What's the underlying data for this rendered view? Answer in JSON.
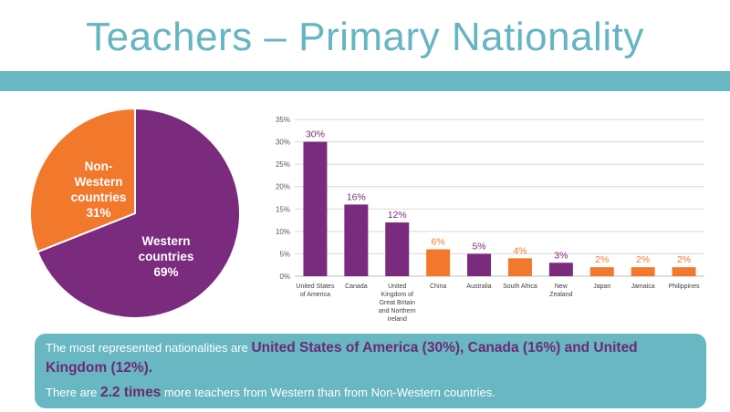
{
  "title": "Teachers – Primary Nationality",
  "colors": {
    "western": "#7b2b7e",
    "nonwestern": "#f2782c",
    "accent": "#68b7c3"
  },
  "pie": {
    "western": {
      "name": "Western countries",
      "value": 69,
      "label_line1": "Western",
      "label_line2": "countries",
      "pct": "69%"
    },
    "nonwestern": {
      "name": "Non-Western countries",
      "value": 31,
      "label_line1": "Non-",
      "label_line2": "Western",
      "label_line3": "countries",
      "pct": "31%"
    }
  },
  "chart_data": [
    {
      "type": "pie",
      "categories": [
        "Western countries",
        "Non-Western countries"
      ],
      "values": [
        69,
        31
      ],
      "colors": [
        "#7b2b7e",
        "#f2782c"
      ]
    },
    {
      "type": "bar",
      "categories": [
        [
          "United States",
          "of America"
        ],
        [
          "Canada"
        ],
        [
          "United",
          "Kingdom of",
          "Great Britain",
          "and Northern",
          "Ireland"
        ],
        [
          "China"
        ],
        [
          "Australia"
        ],
        [
          "South Africa"
        ],
        [
          "New",
          "Zealand"
        ],
        [
          "Japan"
        ],
        [
          "Jamaica"
        ],
        [
          "Philippines"
        ]
      ],
      "values": [
        30,
        16,
        12,
        6,
        5,
        4,
        3,
        2,
        2,
        2
      ],
      "data_labels": [
        "30%",
        "16%",
        "12%",
        "6%",
        "5%",
        "4%",
        "3%",
        "2%",
        "2%",
        "2%"
      ],
      "group": [
        "western",
        "western",
        "western",
        "nonwestern",
        "western",
        "nonwestern",
        "western",
        "nonwestern",
        "nonwestern",
        "nonwestern"
      ],
      "ylim": [
        0,
        35
      ],
      "yticks": [
        0,
        5,
        10,
        15,
        20,
        25,
        30,
        35
      ],
      "ytick_labels": [
        "0%",
        "5%",
        "10%",
        "15%",
        "20%",
        "25%",
        "30%",
        "35%"
      ],
      "grid": true
    }
  ],
  "info": {
    "line1_pre": "The most represented nationalities are ",
    "line1_highlight": "United States of America (30%), Canada (16%) and United Kingdom (12%).",
    "line2_pre": "There are ",
    "line2_highlight": "2.2 times",
    "line2_post": " more teachers from Western than from Non-Western countries."
  }
}
